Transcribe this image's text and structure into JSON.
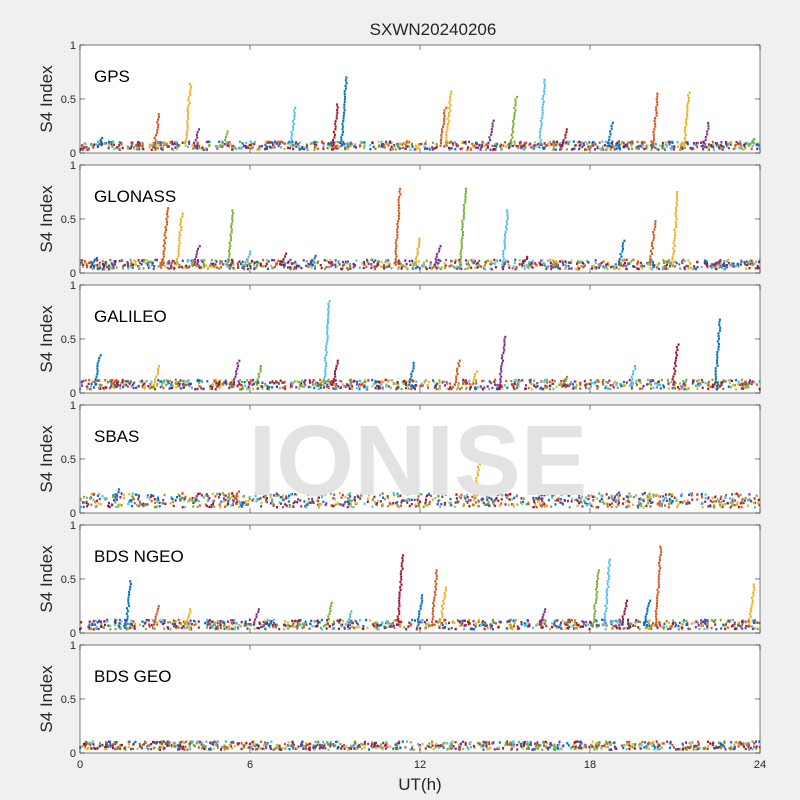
{
  "chart_data": {
    "type": "scatter",
    "title": "SXWN20240206",
    "xlabel": "UT(h)",
    "ylabel": "S4 Index",
    "xlim": [
      0,
      24
    ],
    "ylim": [
      0,
      1
    ],
    "xticks": [
      "0",
      "6",
      "12",
      "18",
      "24"
    ],
    "yticks": [
      "0",
      "0.5",
      "1"
    ],
    "watermark": "IONISE",
    "series_colors": [
      "#0072bd",
      "#d95319",
      "#edb120",
      "#7e2f8e",
      "#77ac30",
      "#4dbeee",
      "#a2142f"
    ],
    "panels": [
      {
        "name": "GPS",
        "baseline": 0.07,
        "spikes": [
          {
            "x": 0.8,
            "y": 0.14
          },
          {
            "x": 2.8,
            "y": 0.36
          },
          {
            "x": 3.9,
            "y": 0.64
          },
          {
            "x": 4.2,
            "y": 0.22
          },
          {
            "x": 5.2,
            "y": 0.2
          },
          {
            "x": 7.6,
            "y": 0.42
          },
          {
            "x": 9.1,
            "y": 0.45
          },
          {
            "x": 9.4,
            "y": 0.7
          },
          {
            "x": 12.9,
            "y": 0.42
          },
          {
            "x": 13.1,
            "y": 0.57
          },
          {
            "x": 14.6,
            "y": 0.3
          },
          {
            "x": 15.4,
            "y": 0.52
          },
          {
            "x": 16.4,
            "y": 0.68
          },
          {
            "x": 17.2,
            "y": 0.22
          },
          {
            "x": 18.8,
            "y": 0.28
          },
          {
            "x": 20.4,
            "y": 0.55
          },
          {
            "x": 21.5,
            "y": 0.56
          },
          {
            "x": 22.2,
            "y": 0.28
          },
          {
            "x": 23.8,
            "y": 0.13
          }
        ]
      },
      {
        "name": "GLONASS",
        "baseline": 0.08,
        "spikes": [
          {
            "x": 0.6,
            "y": 0.14
          },
          {
            "x": 3.1,
            "y": 0.6
          },
          {
            "x": 3.6,
            "y": 0.55
          },
          {
            "x": 4.2,
            "y": 0.25
          },
          {
            "x": 5.4,
            "y": 0.58
          },
          {
            "x": 6.0,
            "y": 0.2
          },
          {
            "x": 7.3,
            "y": 0.18
          },
          {
            "x": 8.3,
            "y": 0.16
          },
          {
            "x": 11.3,
            "y": 0.78
          },
          {
            "x": 12.0,
            "y": 0.32
          },
          {
            "x": 12.7,
            "y": 0.25
          },
          {
            "x": 13.6,
            "y": 0.78
          },
          {
            "x": 15.1,
            "y": 0.58
          },
          {
            "x": 15.8,
            "y": 0.15
          },
          {
            "x": 19.2,
            "y": 0.3
          },
          {
            "x": 20.3,
            "y": 0.48
          },
          {
            "x": 21.1,
            "y": 0.75
          },
          {
            "x": 22.6,
            "y": 0.12
          }
        ]
      },
      {
        "name": "GALILEO",
        "baseline": 0.08,
        "spikes": [
          {
            "x": 0.7,
            "y": 0.35
          },
          {
            "x": 1.3,
            "y": 0.12
          },
          {
            "x": 2.8,
            "y": 0.25
          },
          {
            "x": 5.6,
            "y": 0.3
          },
          {
            "x": 6.4,
            "y": 0.25
          },
          {
            "x": 8.8,
            "y": 0.85
          },
          {
            "x": 9.1,
            "y": 0.3
          },
          {
            "x": 11.8,
            "y": 0.28
          },
          {
            "x": 13.4,
            "y": 0.3
          },
          {
            "x": 14.0,
            "y": 0.2
          },
          {
            "x": 15.0,
            "y": 0.52
          },
          {
            "x": 17.2,
            "y": 0.15
          },
          {
            "x": 19.6,
            "y": 0.25
          },
          {
            "x": 21.1,
            "y": 0.45
          },
          {
            "x": 22.6,
            "y": 0.68
          },
          {
            "x": 23.5,
            "y": 0.1
          }
        ]
      },
      {
        "name": "SBAS",
        "baseline": 0.12,
        "spikes": [
          {
            "x": 1.4,
            "y": 0.22
          },
          {
            "x": 5.6,
            "y": 0.2
          },
          {
            "x": 14.1,
            "y": 0.48
          },
          {
            "x": 19.0,
            "y": 0.19
          }
        ]
      },
      {
        "name": "BDS NGEO",
        "baseline": 0.08,
        "spikes": [
          {
            "x": 1.8,
            "y": 0.48
          },
          {
            "x": 2.8,
            "y": 0.25
          },
          {
            "x": 3.9,
            "y": 0.22
          },
          {
            "x": 6.3,
            "y": 0.22
          },
          {
            "x": 8.9,
            "y": 0.28
          },
          {
            "x": 9.6,
            "y": 0.2
          },
          {
            "x": 11.4,
            "y": 0.72
          },
          {
            "x": 12.1,
            "y": 0.35
          },
          {
            "x": 12.6,
            "y": 0.58
          },
          {
            "x": 12.9,
            "y": 0.42
          },
          {
            "x": 16.4,
            "y": 0.22
          },
          {
            "x": 18.3,
            "y": 0.58
          },
          {
            "x": 18.7,
            "y": 0.68
          },
          {
            "x": 19.3,
            "y": 0.3
          },
          {
            "x": 20.1,
            "y": 0.3
          },
          {
            "x": 20.5,
            "y": 0.8
          },
          {
            "x": 23.8,
            "y": 0.45
          }
        ]
      },
      {
        "name": "BDS GEO",
        "baseline": 0.07,
        "spikes": []
      }
    ]
  }
}
